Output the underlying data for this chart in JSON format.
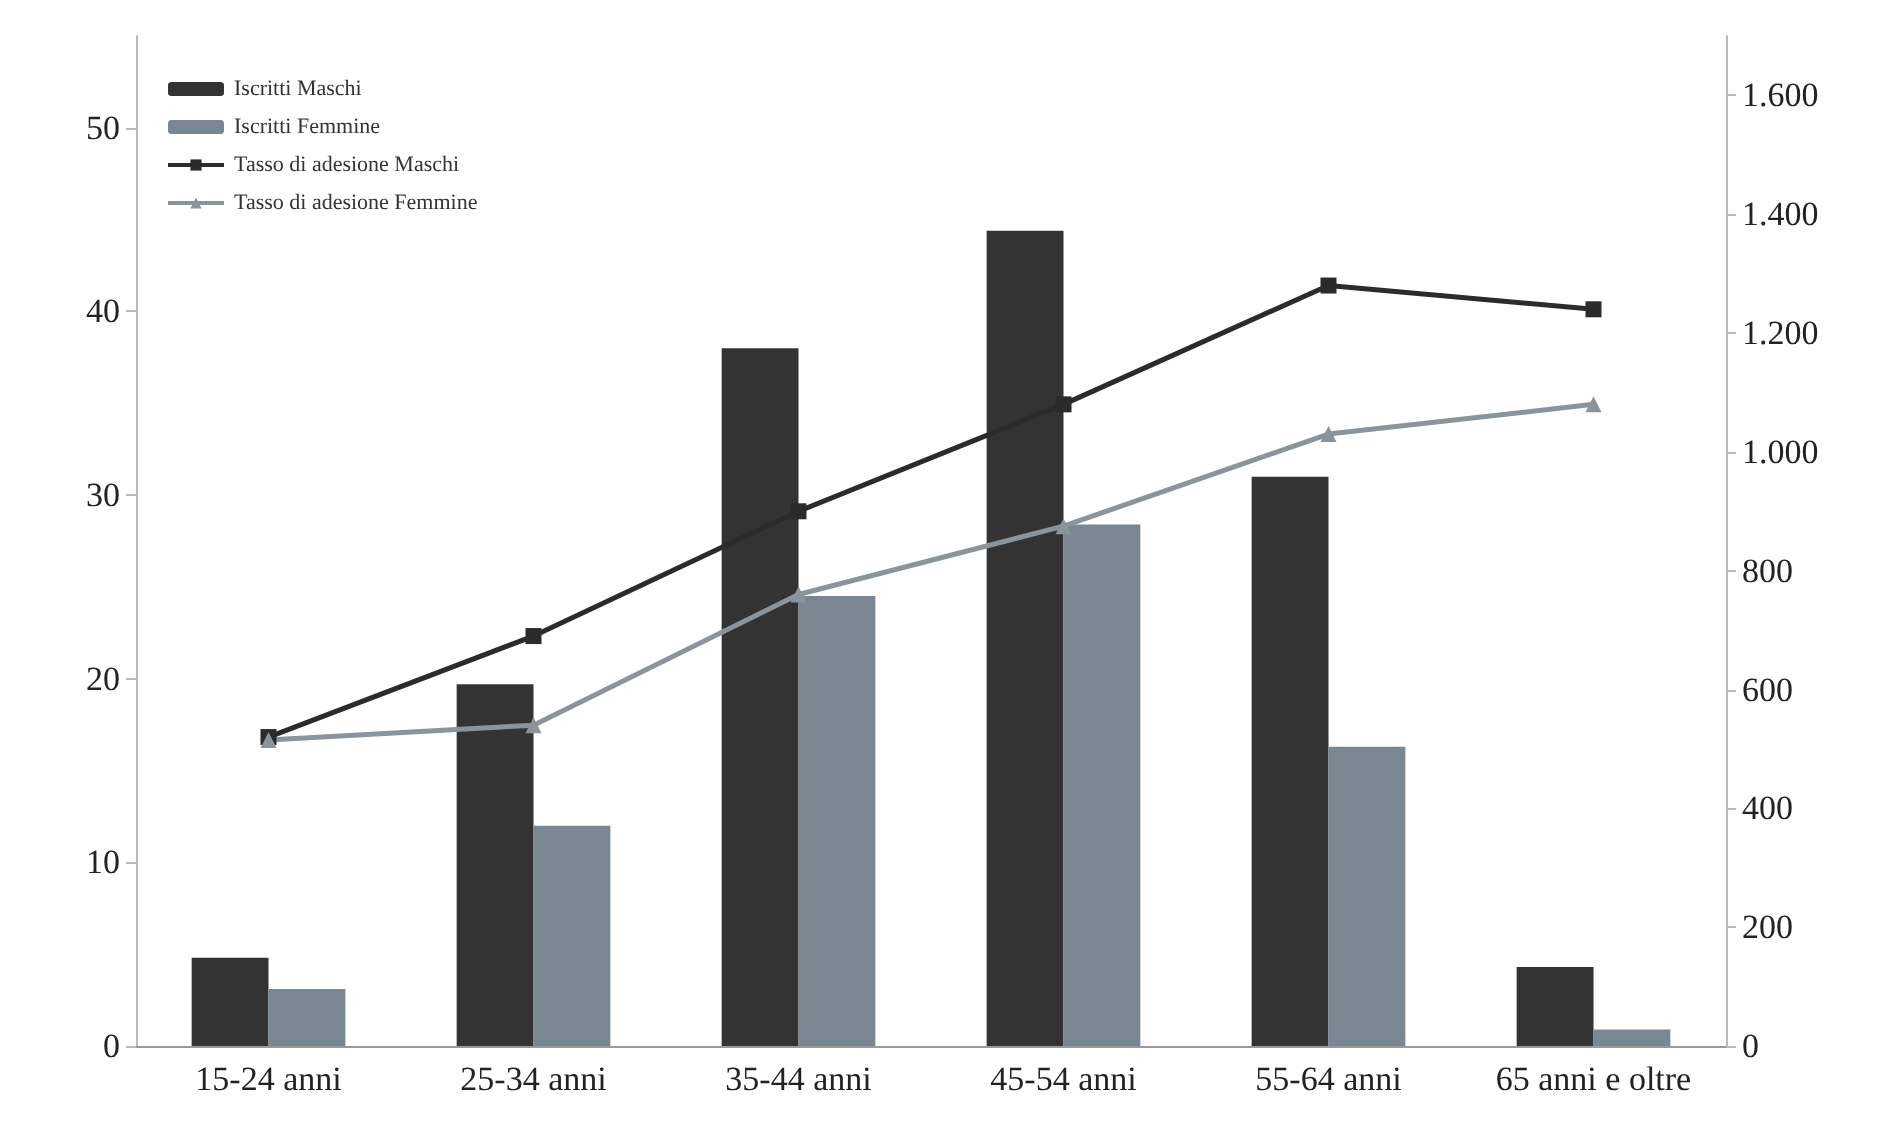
{
  "chart_data": {
    "type": "bar",
    "categories": [
      "15-24 anni",
      "25-34 anni",
      "35-44 anni",
      "45-54 anni",
      "55-64 anni",
      "65 anni e oltre"
    ],
    "series": [
      {
        "name": "Iscritti Maschi",
        "color": "#333333",
        "values": [
          4.8,
          19.7,
          38,
          44.4,
          31,
          4.3
        ]
      },
      {
        "name": "Iscritti Femmine",
        "color": "#7a8691",
        "values": [
          3.1,
          12,
          24.5,
          28.4,
          16.3,
          0.9
        ]
      },
      {
        "name": "Tasso di adesione Maschi",
        "type": "line",
        "axis": "y2",
        "marker": "square",
        "color": "#2b2b2b",
        "values": [
          520,
          690,
          900,
          1080,
          1280,
          1240
        ]
      },
      {
        "name": "Tasso di adesione Femmine",
        "type": "line",
        "axis": "y2",
        "marker": "triangle",
        "color": "#8a949c",
        "values": [
          515,
          540,
          760,
          875,
          1030,
          1080
        ]
      }
    ],
    "ylim": [
      0,
      55
    ],
    "yticks": [
      0,
      10,
      20,
      30,
      40,
      50
    ],
    "y2lim": [
      0,
      1700
    ],
    "y2ticks": [
      0,
      200,
      400,
      600,
      800,
      {
        "value": 1000,
        "label": "1.000"
      },
      {
        "value": 1200,
        "label": "1.200"
      },
      {
        "value": 1400,
        "label": "1.400"
      },
      {
        "value": 1600,
        "label": "1.600"
      }
    ],
    "legend": "top left",
    "grid": false
  }
}
